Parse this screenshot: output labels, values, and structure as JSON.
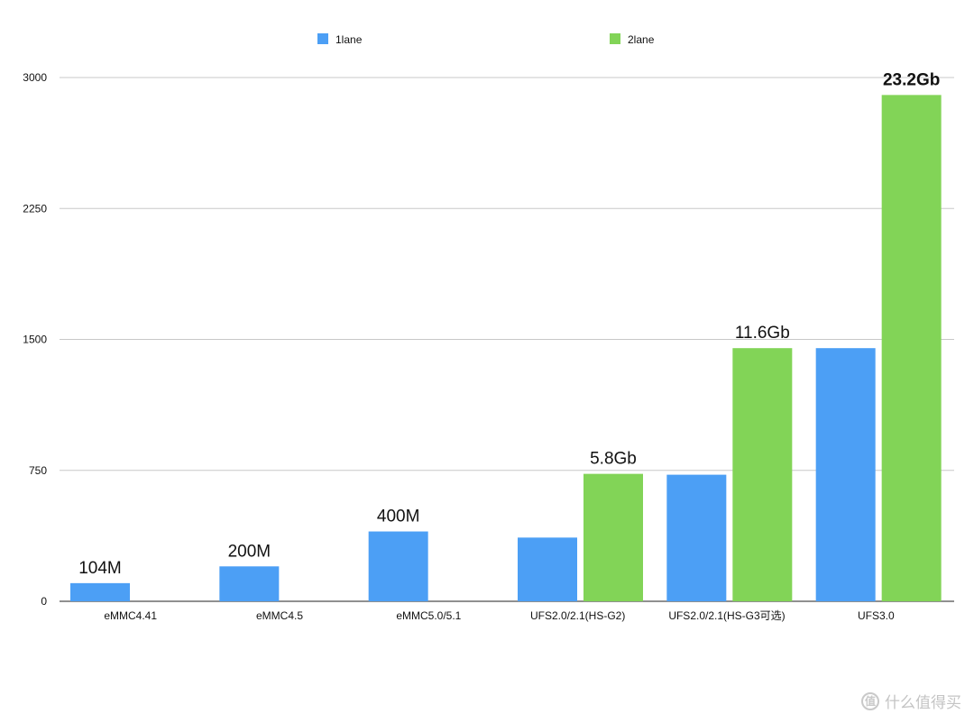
{
  "chart_data": {
    "type": "bar",
    "title": "",
    "xlabel": "",
    "ylabel": "",
    "ylim": [
      0,
      3000
    ],
    "yticks": [
      "0",
      "750",
      "1500",
      "2250",
      "3000"
    ],
    "grid": true,
    "legend_position": "top",
    "categories": [
      "eMMC4.41",
      "eMMC4.5",
      "eMMC5.0/5.1",
      "UFS2.0/2.1(HS-G2)",
      "UFS2.0/2.1(HS-G3可选)",
      "UFS3.0"
    ],
    "series": [
      {
        "name": "1lane",
        "color": "#4c9ff5",
        "values": [
          104,
          200,
          400,
          365,
          725,
          1450
        ],
        "labels": [
          "104M",
          "200M",
          "400M",
          "",
          "",
          ""
        ]
      },
      {
        "name": "2lane",
        "color": "#82d457",
        "values": [
          null,
          null,
          null,
          730,
          1450,
          2900
        ],
        "labels": [
          "",
          "",
          "",
          "5.8Gb",
          "11.6Gb",
          "23.2Gb"
        ]
      }
    ]
  },
  "watermark": {
    "icon": "值",
    "text": "什么值得买"
  }
}
